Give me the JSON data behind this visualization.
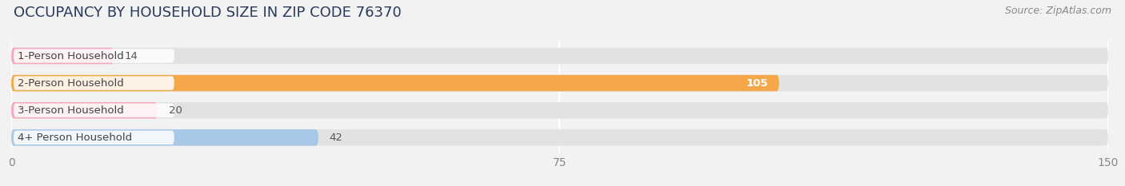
{
  "title": "OCCUPANCY BY HOUSEHOLD SIZE IN ZIP CODE 76370",
  "source": "Source: ZipAtlas.com",
  "categories": [
    "1-Person Household",
    "2-Person Household",
    "3-Person Household",
    "4+ Person Household"
  ],
  "values": [
    14,
    105,
    20,
    42
  ],
  "bar_colors": [
    "#f4a8bc",
    "#f5a84a",
    "#f4a8bc",
    "#a8c8e8"
  ],
  "xlim": [
    0,
    150
  ],
  "xticks": [
    0,
    75,
    150
  ],
  "background_color": "#f2f2f2",
  "bar_bg_color": "#e2e2e2",
  "title_fontsize": 13,
  "source_fontsize": 9,
  "label_fontsize": 9.5,
  "value_fontsize": 9.5,
  "tick_fontsize": 10
}
